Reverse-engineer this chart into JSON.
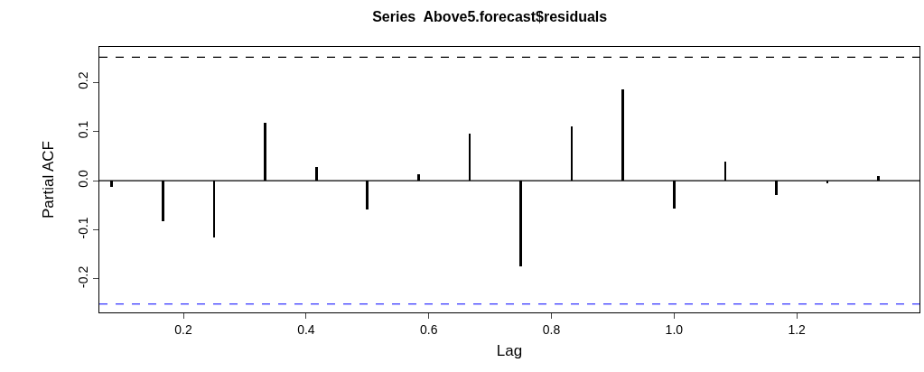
{
  "chart_data": {
    "type": "bar",
    "title": "Series  Above5.forecast$residuals",
    "xlabel": "Lag",
    "ylabel": "Partial ACF",
    "x": [
      0.0833,
      0.1667,
      0.25,
      0.3333,
      0.4167,
      0.5,
      0.5833,
      0.6667,
      0.75,
      0.8333,
      0.9167,
      1.0,
      1.0833,
      1.1667,
      1.25,
      1.3333
    ],
    "series": [
      {
        "color": "#000000",
        "values": [
          -0.013,
          -0.083,
          -0.116,
          0.117,
          0.028,
          -0.059,
          0.013,
          0.095,
          -0.174,
          0.11,
          0.185,
          -0.057,
          0.039,
          -0.029,
          -0.006,
          0.009
        ]
      }
    ],
    "xlim": [
      0.063,
      1.4
    ],
    "xticks": [
      0.2,
      0.4,
      0.6,
      0.8,
      {
        "value": 1,
        "label": "1.0"
      },
      1.2
    ],
    "ylim": [
      -0.268,
      0.272
    ],
    "yticks": [
      -0.2,
      -0.1,
      {
        "value": 0,
        "label": "0.0"
      },
      0.1,
      0.2
    ],
    "ref_lines": [
      {
        "axis": "y",
        "value": 0,
        "color": "#000000",
        "line_style": "solid"
      },
      {
        "axis": "y",
        "value": 0.251,
        "color": "#000000",
        "line_style": "dashed"
      },
      {
        "axis": "y",
        "value": -0.251,
        "color": "#0000ff",
        "line_style": "dashed"
      }
    ]
  }
}
